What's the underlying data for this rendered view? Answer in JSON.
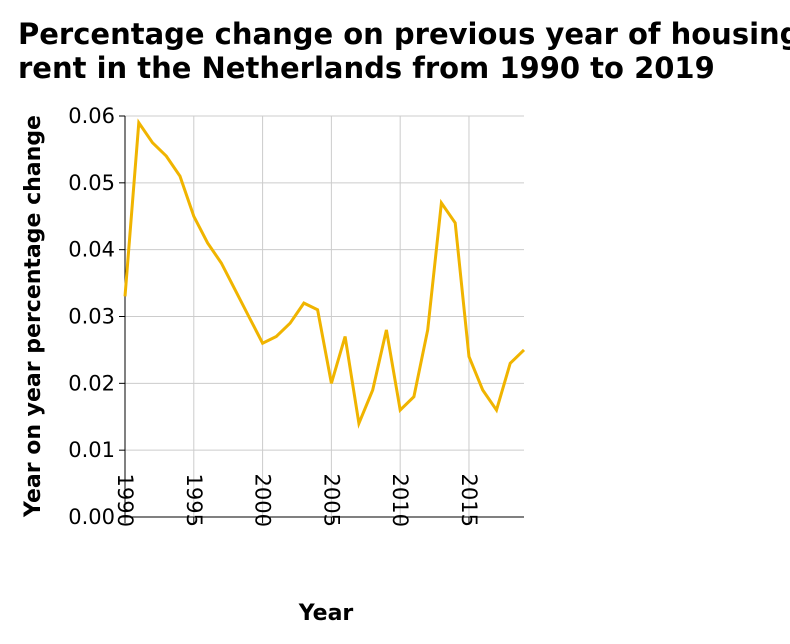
{
  "chart_data": {
    "type": "line",
    "title_line1": "Percentage change on previous year of housing",
    "title_line2": "rent in the Netherlands from 1990 to 2019",
    "xlabel": "Year",
    "ylabel": "Year on year percentage change",
    "xlim": [
      1990,
      2019
    ],
    "ylim": [
      0,
      0.06
    ],
    "grid": true,
    "color": "#f0b400",
    "x_ticks": [
      "1990",
      "1995",
      "2000",
      "2005",
      "2010",
      "2015"
    ],
    "y_ticks": [
      "0.00",
      "0.01",
      "0.02",
      "0.03",
      "0.04",
      "0.05",
      "0.06"
    ],
    "x": [
      1990,
      1991,
      1992,
      1993,
      1994,
      1995,
      1996,
      1997,
      1998,
      1999,
      2000,
      2001,
      2002,
      2003,
      2004,
      2005,
      2006,
      2007,
      2008,
      2009,
      2010,
      2011,
      2012,
      2013,
      2014,
      2015,
      2016,
      2017,
      2018,
      2019
    ],
    "values": [
      0.033,
      0.059,
      0.056,
      0.054,
      0.051,
      0.045,
      0.041,
      0.038,
      0.034,
      0.03,
      0.026,
      0.027,
      0.029,
      0.032,
      0.031,
      0.02,
      0.027,
      0.014,
      0.019,
      0.028,
      0.016,
      0.018,
      0.028,
      0.047,
      0.044,
      0.024,
      0.019,
      0.016,
      0.023,
      0.025
    ]
  }
}
